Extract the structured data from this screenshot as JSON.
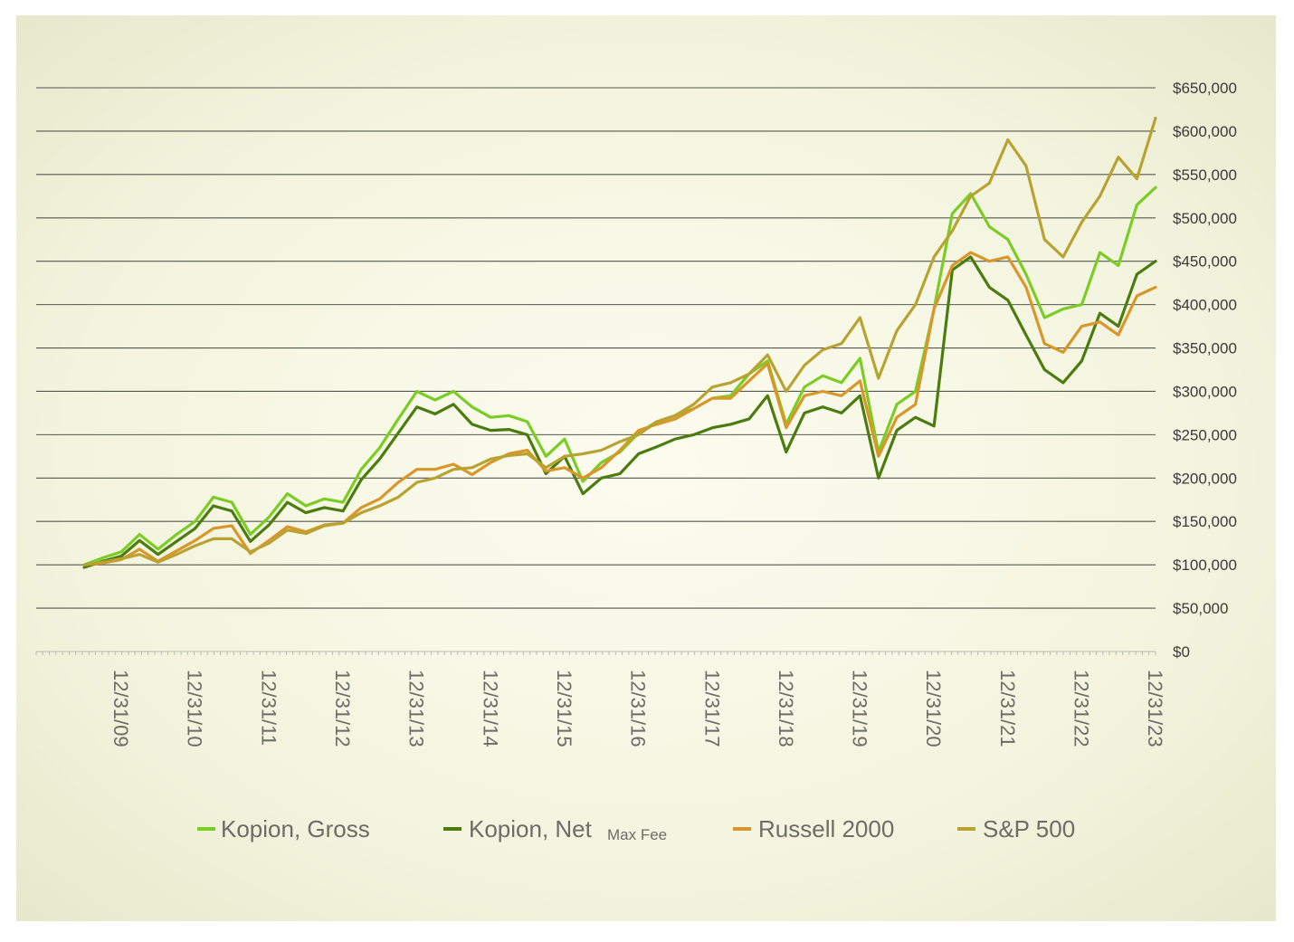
{
  "chart_data": {
    "type": "line",
    "title": "",
    "xlabel": "",
    "ylabel": "",
    "ylim": [
      0,
      650000
    ],
    "xlim": [
      "2009-06-30",
      "2023-12-31"
    ],
    "grid": true,
    "legend_position": "bottom",
    "y_ticks": [
      0,
      50000,
      100000,
      150000,
      200000,
      250000,
      300000,
      350000,
      400000,
      450000,
      500000,
      550000,
      600000,
      650000
    ],
    "y_tick_labels": [
      "$0",
      "$50,000",
      "$100,000",
      "$150,000",
      "$200,000",
      "$250,000",
      "$300,000",
      "$350,000",
      "$400,000",
      "$450,000",
      "$500,000",
      "$550,000",
      "$600,000",
      "$650,000"
    ],
    "x_ticks": [
      "2009-12-31",
      "2010-12-31",
      "2011-12-31",
      "2012-12-31",
      "2013-12-31",
      "2014-12-31",
      "2015-12-31",
      "2016-12-31",
      "2017-12-31",
      "2018-12-31",
      "2019-12-31",
      "2020-12-31",
      "2021-12-31",
      "2022-12-31",
      "2023-12-31"
    ],
    "x_tick_labels": [
      "12/31/09",
      "12/31/10",
      "12/31/11",
      "12/31/12",
      "12/31/13",
      "12/31/14",
      "12/31/15",
      "12/31/16",
      "12/31/17",
      "12/31/18",
      "12/31/19",
      "12/31/20",
      "12/31/21",
      "12/31/22",
      "12/31/23"
    ],
    "legend_note": "Max Fee",
    "series": [
      {
        "name": "Kopion, Gross",
        "color": "#7ccc26",
        "points": [
          [
            "2009-06-30",
            100000
          ],
          [
            "2009-09-30",
            108000
          ],
          [
            "2009-12-31",
            115000
          ],
          [
            "2010-03-31",
            135000
          ],
          [
            "2010-06-30",
            118000
          ],
          [
            "2010-09-30",
            135000
          ],
          [
            "2010-12-31",
            150000
          ],
          [
            "2011-03-31",
            178000
          ],
          [
            "2011-06-30",
            172000
          ],
          [
            "2011-09-30",
            135000
          ],
          [
            "2011-12-31",
            155000
          ],
          [
            "2012-03-31",
            182000
          ],
          [
            "2012-06-30",
            168000
          ],
          [
            "2012-09-30",
            176000
          ],
          [
            "2012-12-31",
            172000
          ],
          [
            "2013-03-31",
            210000
          ],
          [
            "2013-06-30",
            235000
          ],
          [
            "2013-09-30",
            268000
          ],
          [
            "2013-12-31",
            300000
          ],
          [
            "2014-03-31",
            290000
          ],
          [
            "2014-06-30",
            300000
          ],
          [
            "2014-09-30",
            282000
          ],
          [
            "2014-12-31",
            270000
          ],
          [
            "2015-03-31",
            272000
          ],
          [
            "2015-06-30",
            265000
          ],
          [
            "2015-09-30",
            225000
          ],
          [
            "2015-12-31",
            245000
          ],
          [
            "2016-03-31",
            196000
          ],
          [
            "2016-06-30",
            218000
          ],
          [
            "2016-09-30",
            230000
          ],
          [
            "2016-12-31",
            252000
          ],
          [
            "2017-03-31",
            265000
          ],
          [
            "2017-06-30",
            272000
          ],
          [
            "2017-09-30",
            280000
          ],
          [
            "2017-12-31",
            292000
          ],
          [
            "2018-03-31",
            295000
          ],
          [
            "2018-06-30",
            320000
          ],
          [
            "2018-09-30",
            335000
          ],
          [
            "2018-12-31",
            262000
          ],
          [
            "2019-03-31",
            305000
          ],
          [
            "2019-06-30",
            318000
          ],
          [
            "2019-09-30",
            310000
          ],
          [
            "2019-12-31",
            338000
          ],
          [
            "2020-03-31",
            230000
          ],
          [
            "2020-06-30",
            285000
          ],
          [
            "2020-09-30",
            300000
          ],
          [
            "2020-12-31",
            395000
          ],
          [
            "2021-03-31",
            505000
          ],
          [
            "2021-06-30",
            528000
          ],
          [
            "2021-09-30",
            490000
          ],
          [
            "2021-12-31",
            475000
          ],
          [
            "2022-03-31",
            435000
          ],
          [
            "2022-06-30",
            385000
          ],
          [
            "2022-09-30",
            395000
          ],
          [
            "2022-12-31",
            400000
          ],
          [
            "2023-03-31",
            460000
          ],
          [
            "2023-06-30",
            445000
          ],
          [
            "2023-09-30",
            515000
          ],
          [
            "2023-12-31",
            535000
          ]
        ]
      },
      {
        "name": "Kopion, Net",
        "color": "#4a7c0f",
        "points": [
          [
            "2009-06-30",
            97000
          ],
          [
            "2009-09-30",
            104000
          ],
          [
            "2009-12-31",
            110000
          ],
          [
            "2010-03-31",
            128000
          ],
          [
            "2010-06-30",
            112000
          ],
          [
            "2010-09-30",
            127000
          ],
          [
            "2010-12-31",
            142000
          ],
          [
            "2011-03-31",
            168000
          ],
          [
            "2011-06-30",
            162000
          ],
          [
            "2011-09-30",
            127000
          ],
          [
            "2011-12-31",
            146000
          ],
          [
            "2012-03-31",
            172000
          ],
          [
            "2012-06-30",
            160000
          ],
          [
            "2012-09-30",
            166000
          ],
          [
            "2012-12-31",
            162000
          ],
          [
            "2013-03-31",
            198000
          ],
          [
            "2013-06-30",
            222000
          ],
          [
            "2013-09-30",
            252000
          ],
          [
            "2013-12-31",
            282000
          ],
          [
            "2014-03-31",
            274000
          ],
          [
            "2014-06-30",
            285000
          ],
          [
            "2014-09-30",
            262000
          ],
          [
            "2014-12-31",
            255000
          ],
          [
            "2015-03-31",
            256000
          ],
          [
            "2015-06-30",
            250000
          ],
          [
            "2015-09-30",
            205000
          ],
          [
            "2015-12-31",
            225000
          ],
          [
            "2016-03-31",
            182000
          ],
          [
            "2016-06-30",
            200000
          ],
          [
            "2016-09-30",
            205000
          ],
          [
            "2016-12-31",
            228000
          ],
          [
            "2017-03-31",
            236000
          ],
          [
            "2017-06-30",
            245000
          ],
          [
            "2017-09-30",
            250000
          ],
          [
            "2017-12-31",
            258000
          ],
          [
            "2018-03-31",
            262000
          ],
          [
            "2018-06-30",
            268000
          ],
          [
            "2018-09-30",
            295000
          ],
          [
            "2018-12-31",
            230000
          ],
          [
            "2019-03-31",
            275000
          ],
          [
            "2019-06-30",
            282000
          ],
          [
            "2019-09-30",
            275000
          ],
          [
            "2019-12-31",
            295000
          ],
          [
            "2020-03-31",
            200000
          ],
          [
            "2020-06-30",
            255000
          ],
          [
            "2020-09-30",
            270000
          ],
          [
            "2020-12-31",
            260000
          ],
          [
            "2021-03-31",
            440000
          ],
          [
            "2021-06-30",
            455000
          ],
          [
            "2021-09-30",
            420000
          ],
          [
            "2021-12-31",
            405000
          ],
          [
            "2022-03-31",
            365000
          ],
          [
            "2022-06-30",
            325000
          ],
          [
            "2022-09-30",
            310000
          ],
          [
            "2022-12-31",
            335000
          ],
          [
            "2023-03-31",
            390000
          ],
          [
            "2023-06-30",
            375000
          ],
          [
            "2023-09-30",
            435000
          ],
          [
            "2023-12-31",
            450000
          ]
        ]
      },
      {
        "name": "Russell 2000",
        "color": "#d9962a",
        "points": [
          [
            "2009-06-30",
            100000
          ],
          [
            "2009-09-30",
            102000
          ],
          [
            "2009-12-31",
            106000
          ],
          [
            "2010-03-31",
            118000
          ],
          [
            "2010-06-30",
            104000
          ],
          [
            "2010-09-30",
            116000
          ],
          [
            "2010-12-31",
            128000
          ],
          [
            "2011-03-31",
            142000
          ],
          [
            "2011-06-30",
            145000
          ],
          [
            "2011-09-30",
            113000
          ],
          [
            "2011-12-31",
            128000
          ],
          [
            "2012-03-31",
            144000
          ],
          [
            "2012-06-30",
            138000
          ],
          [
            "2012-09-30",
            146000
          ],
          [
            "2012-12-31",
            148000
          ],
          [
            "2013-03-31",
            166000
          ],
          [
            "2013-06-30",
            176000
          ],
          [
            "2013-09-30",
            195000
          ],
          [
            "2013-12-31",
            210000
          ],
          [
            "2014-03-31",
            210000
          ],
          [
            "2014-06-30",
            216000
          ],
          [
            "2014-09-30",
            204000
          ],
          [
            "2014-12-31",
            218000
          ],
          [
            "2015-03-31",
            228000
          ],
          [
            "2015-06-30",
            232000
          ],
          [
            "2015-09-30",
            208000
          ],
          [
            "2015-12-31",
            212000
          ],
          [
            "2016-03-31",
            200000
          ],
          [
            "2016-06-30",
            212000
          ],
          [
            "2016-09-30",
            232000
          ],
          [
            "2016-12-31",
            255000
          ],
          [
            "2017-03-31",
            262000
          ],
          [
            "2017-06-30",
            268000
          ],
          [
            "2017-09-30",
            280000
          ],
          [
            "2017-12-31",
            292000
          ],
          [
            "2018-03-31",
            292000
          ],
          [
            "2018-06-30",
            312000
          ],
          [
            "2018-09-30",
            332000
          ],
          [
            "2018-12-31",
            258000
          ],
          [
            "2019-03-31",
            295000
          ],
          [
            "2019-06-30",
            300000
          ],
          [
            "2019-09-30",
            295000
          ],
          [
            "2019-12-31",
            312000
          ],
          [
            "2020-03-31",
            225000
          ],
          [
            "2020-06-30",
            270000
          ],
          [
            "2020-09-30",
            285000
          ],
          [
            "2020-12-31",
            395000
          ],
          [
            "2021-03-31",
            445000
          ],
          [
            "2021-06-30",
            460000
          ],
          [
            "2021-09-30",
            450000
          ],
          [
            "2021-12-31",
            455000
          ],
          [
            "2022-03-31",
            420000
          ],
          [
            "2022-06-30",
            355000
          ],
          [
            "2022-09-30",
            345000
          ],
          [
            "2022-12-31",
            375000
          ],
          [
            "2023-03-31",
            380000
          ],
          [
            "2023-06-30",
            365000
          ],
          [
            "2023-09-30",
            410000
          ],
          [
            "2023-12-31",
            420000
          ]
        ]
      },
      {
        "name": "S&P 500",
        "color": "#b8a332",
        "points": [
          [
            "2009-06-30",
            100000
          ],
          [
            "2009-09-30",
            103000
          ],
          [
            "2009-12-31",
            107000
          ],
          [
            "2010-03-31",
            112000
          ],
          [
            "2010-06-30",
            103000
          ],
          [
            "2010-09-30",
            112000
          ],
          [
            "2010-12-31",
            122000
          ],
          [
            "2011-03-31",
            130000
          ],
          [
            "2011-06-30",
            130000
          ],
          [
            "2011-09-30",
            115000
          ],
          [
            "2011-12-31",
            125000
          ],
          [
            "2012-03-31",
            140000
          ],
          [
            "2012-06-30",
            136000
          ],
          [
            "2012-09-30",
            145000
          ],
          [
            "2012-12-31",
            148000
          ],
          [
            "2013-03-31",
            160000
          ],
          [
            "2013-06-30",
            168000
          ],
          [
            "2013-09-30",
            178000
          ],
          [
            "2013-12-31",
            195000
          ],
          [
            "2014-03-31",
            200000
          ],
          [
            "2014-06-30",
            210000
          ],
          [
            "2014-09-30",
            212000
          ],
          [
            "2014-12-31",
            222000
          ],
          [
            "2015-03-31",
            226000
          ],
          [
            "2015-06-30",
            228000
          ],
          [
            "2015-09-30",
            212000
          ],
          [
            "2015-12-31",
            225000
          ],
          [
            "2016-03-31",
            228000
          ],
          [
            "2016-06-30",
            232000
          ],
          [
            "2016-09-30",
            242000
          ],
          [
            "2016-12-31",
            250000
          ],
          [
            "2017-03-31",
            265000
          ],
          [
            "2017-06-30",
            272000
          ],
          [
            "2017-09-30",
            285000
          ],
          [
            "2017-12-31",
            305000
          ],
          [
            "2018-03-31",
            310000
          ],
          [
            "2018-06-30",
            320000
          ],
          [
            "2018-09-30",
            342000
          ],
          [
            "2018-12-31",
            300000
          ],
          [
            "2019-03-31",
            330000
          ],
          [
            "2019-06-30",
            348000
          ],
          [
            "2019-09-30",
            355000
          ],
          [
            "2019-12-31",
            385000
          ],
          [
            "2020-03-31",
            315000
          ],
          [
            "2020-06-30",
            370000
          ],
          [
            "2020-09-30",
            400000
          ],
          [
            "2020-12-31",
            455000
          ],
          [
            "2021-03-31",
            485000
          ],
          [
            "2021-06-30",
            525000
          ],
          [
            "2021-09-30",
            540000
          ],
          [
            "2021-12-31",
            590000
          ],
          [
            "2022-03-31",
            560000
          ],
          [
            "2022-06-30",
            475000
          ],
          [
            "2022-09-30",
            455000
          ],
          [
            "2022-12-31",
            495000
          ],
          [
            "2023-03-31",
            525000
          ],
          [
            "2023-06-30",
            570000
          ],
          [
            "2023-09-30",
            545000
          ],
          [
            "2023-12-31",
            615000
          ]
        ]
      }
    ]
  }
}
